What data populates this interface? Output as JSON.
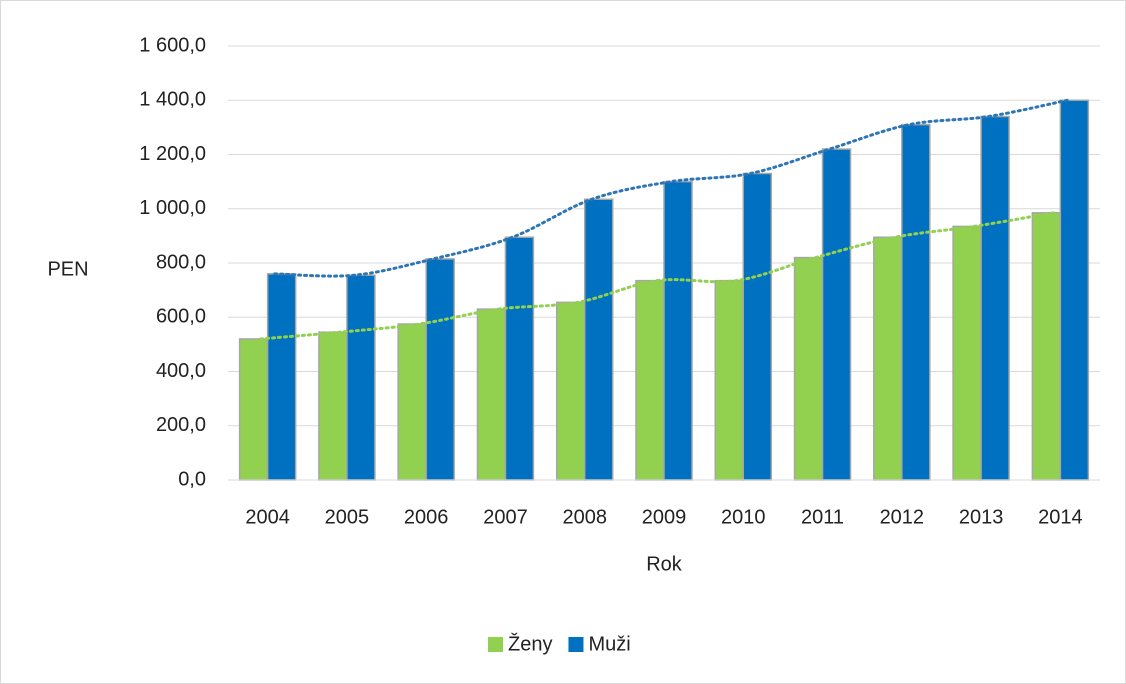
{
  "chart_data": {
    "type": "bar",
    "ylabel": "PEN",
    "xlabel": "Rok",
    "categories": [
      "2004",
      "2005",
      "2006",
      "2007",
      "2008",
      "2009",
      "2010",
      "2011",
      "2012",
      "2013",
      "2014"
    ],
    "series": [
      {
        "name": "Ženy",
        "color": "#92d050",
        "values": [
          520,
          545,
          575,
          630,
          655,
          735,
          735,
          820,
          895,
          935,
          985
        ]
      },
      {
        "name": "Muži",
        "color": "#0070c0",
        "values": [
          760,
          755,
          815,
          895,
          1035,
          1100,
          1130,
          1220,
          1310,
          1340,
          1400
        ]
      }
    ],
    "ylim": [
      0,
      1600
    ],
    "yticks": [
      {
        "value": 0,
        "label": "0,0"
      },
      {
        "value": 200,
        "label": "200,0"
      },
      {
        "value": 400,
        "label": "400,0"
      },
      {
        "value": 600,
        "label": "600,0"
      },
      {
        "value": 800,
        "label": "800,0"
      },
      {
        "value": 1000,
        "label": "1 000,0"
      },
      {
        "value": 1200,
        "label": "1 200,0"
      },
      {
        "value": 1400,
        "label": "1 400,0"
      },
      {
        "value": 1600,
        "label": "1 600,0"
      }
    ],
    "grid": true,
    "legend": "bottom",
    "trendline": true
  }
}
